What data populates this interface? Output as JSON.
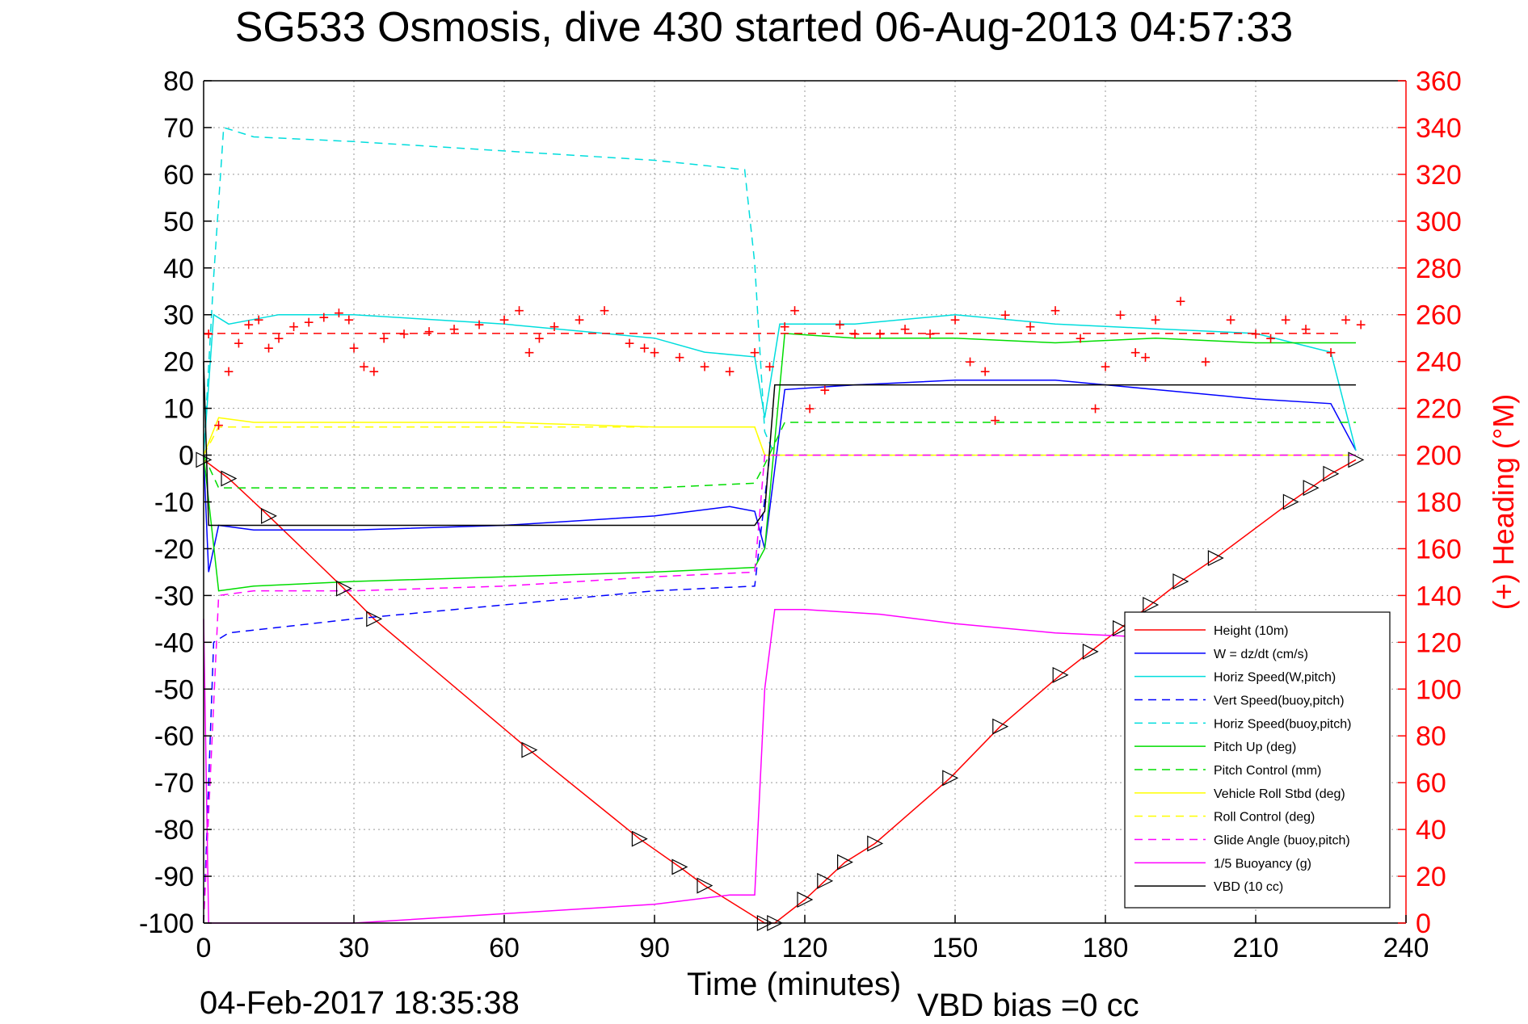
{
  "chart_data": {
    "type": "line",
    "title": "SG533 Osmosis, dive 430 started 06-Aug-2013 04:57:33",
    "xlabel": "Time (minutes)",
    "ylabel_right": "(+) Heading (°M)",
    "footer_date": "04-Feb-2017 18:35:38",
    "footer_note": "VBD bias =0 cc",
    "xlim": [
      0,
      240
    ],
    "ylim": [
      -100,
      80
    ],
    "ylim_right": [
      0,
      360
    ],
    "x_ticks": [
      "0",
      "30",
      "60",
      "90",
      "120",
      "150",
      "180",
      "210",
      "240"
    ],
    "y_ticks": [
      "80",
      "70",
      "60",
      "50",
      "40",
      "30",
      "20",
      "10",
      "0",
      "-10",
      "-20",
      "-30",
      "-40",
      "-50",
      "-60",
      "-70",
      "-80",
      "-90",
      "-100"
    ],
    "y_ticks_right": [
      "360",
      "340",
      "320",
      "300",
      "280",
      "260",
      "240",
      "220",
      "200",
      "180",
      "160",
      "140",
      "120",
      "100",
      "80",
      "60",
      "40",
      "20",
      "0"
    ],
    "grid": true,
    "legend_position": "lower-right",
    "series": [
      {
        "name": "Height (10m)",
        "color": "#ff0000",
        "style": "solid",
        "x": [
          0,
          5,
          13,
          28,
          34,
          65,
          87,
          95,
          100,
          112,
          114,
          120,
          124,
          128,
          134,
          149,
          159,
          171,
          177,
          183,
          189,
          195,
          202,
          217,
          221,
          225,
          230
        ],
        "y": [
          -1,
          -5,
          -13,
          -28.5,
          -35,
          -63,
          -82,
          -88,
          -92,
          -100,
          -100,
          -95,
          -91,
          -87,
          -83,
          -69,
          -58,
          -47,
          -42,
          -37,
          -32,
          -27,
          -22,
          -10,
          -7,
          -4,
          -1
        ]
      },
      {
        "name": "W = dz/dt (cm/s)",
        "color": "#0000ff",
        "style": "solid",
        "x": [
          0,
          1,
          3,
          10,
          30,
          60,
          90,
          105,
          110,
          112,
          116,
          130,
          150,
          170,
          190,
          210,
          225,
          230
        ],
        "y": [
          0,
          -25,
          -15,
          -16,
          -16,
          -15,
          -13,
          -11,
          -12,
          -20,
          14,
          15,
          16,
          16,
          14,
          12,
          11,
          1
        ]
      },
      {
        "name": "Horiz Speed(W,pitch)",
        "color": "#00dddd",
        "style": "solid",
        "x": [
          0,
          2,
          5,
          15,
          30,
          60,
          90,
          100,
          110,
          112,
          115,
          130,
          150,
          170,
          190,
          210,
          225,
          230
        ],
        "y": [
          0,
          30,
          28,
          30,
          30,
          28,
          25,
          22,
          21,
          8,
          28,
          28,
          30,
          28,
          27,
          26,
          22,
          1
        ]
      },
      {
        "name": "Vert Speed(buoy,pitch)",
        "color": "#0000ff",
        "style": "dashed",
        "x": [
          0,
          2,
          5,
          30,
          60,
          90,
          110,
          113,
          115,
          130,
          150,
          180,
          210,
          225,
          230
        ],
        "y": [
          -100,
          -40,
          -38,
          -35,
          -32,
          -29,
          -28,
          0,
          0,
          0,
          0,
          0,
          0,
          0,
          0
        ]
      },
      {
        "name": "Horiz Speed(buoy,pitch)",
        "color": "#00dddd",
        "style": "dashed",
        "x": [
          0,
          2,
          4,
          10,
          30,
          60,
          90,
          108,
          110,
          112,
          114,
          130,
          150,
          170,
          190,
          210,
          225
        ],
        "y": [
          0,
          38,
          70,
          68,
          67,
          65,
          63,
          61,
          41,
          5,
          0,
          0,
          0,
          0,
          0,
          0,
          0
        ]
      },
      {
        "name": "Pitch Up (deg)",
        "color": "#00dd00",
        "style": "solid",
        "x": [
          0,
          3,
          10,
          30,
          60,
          90,
          110,
          112,
          116,
          130,
          150,
          170,
          190,
          210,
          225,
          230
        ],
        "y": [
          0,
          -29,
          -28,
          -27,
          -26,
          -25,
          -24,
          -20,
          26,
          25,
          25,
          24,
          25,
          24,
          24,
          24
        ]
      },
      {
        "name": "Pitch Control (mm)",
        "color": "#00dd00",
        "style": "dashed",
        "x": [
          0,
          3,
          10,
          30,
          60,
          90,
          110,
          112,
          116,
          130,
          150,
          170,
          190,
          210,
          225,
          230
        ],
        "y": [
          0,
          -7,
          -7,
          -7,
          -7,
          -7,
          -6,
          -2,
          7,
          7,
          7,
          7,
          7,
          7,
          7,
          7
        ]
      },
      {
        "name": "Vehicle Roll Stbd (deg)",
        "color": "#ffff00",
        "style": "solid",
        "x": [
          0,
          3,
          10,
          30,
          60,
          90,
          110,
          112,
          116,
          130,
          150,
          170,
          190,
          210,
          225,
          230
        ],
        "y": [
          0,
          8,
          7,
          7,
          7,
          6,
          6,
          0,
          0,
          0,
          0,
          0,
          0,
          0,
          0,
          0
        ]
      },
      {
        "name": "Roll Control (deg)",
        "color": "#ffff00",
        "style": "dashed",
        "x": [
          0,
          3,
          10,
          30,
          60,
          90,
          110,
          112,
          116,
          130,
          150,
          170,
          190,
          210,
          225,
          230
        ],
        "y": [
          0,
          6,
          6,
          6,
          6,
          6,
          6,
          0,
          0,
          0,
          0,
          0,
          0,
          0,
          0,
          0
        ]
      },
      {
        "name": "Glide Angle (buoy,pitch)",
        "color": "#ff00ff",
        "style": "dashed",
        "x": [
          0,
          3,
          10,
          30,
          60,
          90,
          110,
          112,
          114,
          130,
          150,
          180,
          210,
          225,
          230
        ],
        "y": [
          -100,
          -30,
          -29,
          -29,
          -28,
          -26,
          -25,
          0,
          0,
          0,
          0,
          0,
          0,
          0,
          0
        ]
      },
      {
        "name": "1/5 Buoyancy (g)",
        "color": "#ff00ff",
        "style": "solid",
        "x": [
          0,
          1,
          3,
          10,
          30,
          60,
          90,
          105,
          110,
          112,
          114,
          120,
          135,
          150,
          170,
          190,
          210,
          225,
          230
        ],
        "y": [
          -35,
          -100,
          -100,
          -100,
          -100,
          -98,
          -96,
          -94,
          -94,
          -50,
          -33,
          -33,
          -34,
          -36,
          -38,
          -39,
          -40,
          -40,
          -40
        ]
      },
      {
        "name": "VBD (10 cc)",
        "color": "#000000",
        "style": "solid",
        "x": [
          0,
          1,
          110,
          112,
          114,
          230
        ],
        "y": [
          20,
          -15,
          -15,
          -12,
          15,
          15
        ]
      }
    ],
    "heading_series": {
      "name": "Heading",
      "color": "#ff0000",
      "marker": "+",
      "mean": 252,
      "x": [
        1,
        3,
        5,
        7,
        9,
        11,
        13,
        15,
        18,
        21,
        24,
        27,
        29,
        30,
        32,
        34,
        36,
        40,
        45,
        50,
        55,
        60,
        63,
        65,
        67,
        70,
        75,
        80,
        85,
        88,
        90,
        95,
        100,
        105,
        110,
        113,
        116,
        118,
        121,
        124,
        127,
        130,
        135,
        140,
        145,
        150,
        153,
        156,
        158,
        160,
        165,
        170,
        175,
        178,
        180,
        183,
        186,
        188,
        190,
        195,
        200,
        205,
        210,
        213,
        216,
        220,
        225,
        228,
        231
      ],
      "y": [
        252,
        213,
        236,
        248,
        256,
        258,
        246,
        250,
        255,
        257,
        259,
        261,
        258,
        246,
        238,
        236,
        250,
        252,
        253,
        254,
        256,
        258,
        262,
        244,
        250,
        255,
        258,
        262,
        248,
        246,
        244,
        242,
        238,
        236,
        244,
        238,
        255,
        262,
        220,
        228,
        256,
        252,
        252,
        254,
        252,
        258,
        240,
        236,
        215,
        260,
        255,
        262,
        250,
        220,
        238,
        260,
        244,
        242,
        258,
        266,
        240,
        258,
        252,
        250,
        258,
        254,
        244,
        258,
        256
      ]
    },
    "annotations": [
      {
        "type": "triangle-markers",
        "on": "Height (10m)"
      }
    ]
  }
}
